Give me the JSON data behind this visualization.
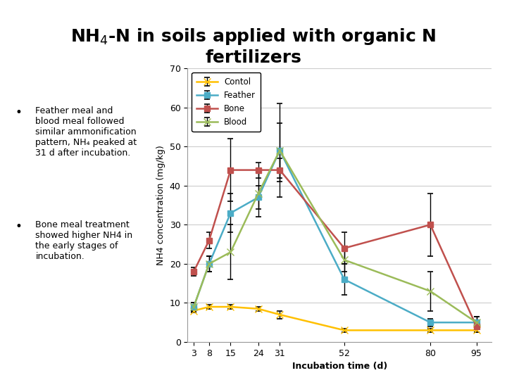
{
  "title": "NH$_4$-N in soils applied with organic N\nfertilizers",
  "xlabel": "Incubation time (d)",
  "ylabel": "NH4 concentration (mg/kg)",
  "x": [
    3,
    8,
    15,
    24,
    31,
    52,
    80,
    95
  ],
  "ylim": [
    0,
    70
  ],
  "yticks": [
    0,
    10,
    20,
    30,
    40,
    50,
    60,
    70
  ],
  "bullet1": "Feather meal and\nblood meal followed\nsimilar ammonification\npattern, NH₄ peaked at\n31 d after incubation.",
  "bullet2": "Bone meal treatment\nshowed higher NH4 in\nthe early stages of\nincubation.",
  "series": {
    "Contol": {
      "y": [
        8,
        9,
        9,
        8.5,
        7,
        3,
        3,
        3
      ],
      "yerr": [
        0.5,
        0.5,
        0.5,
        0.5,
        1.0,
        0.5,
        0.5,
        0.5
      ],
      "color": "#FFC000",
      "marker": "x",
      "linewidth": 1.8,
      "markersize": 7
    },
    "Feather": {
      "y": [
        9,
        20,
        33,
        37,
        49,
        16,
        5,
        5
      ],
      "yerr": [
        1.0,
        2.0,
        5.0,
        3.0,
        12.0,
        4.0,
        1.0,
        1.5
      ],
      "color": "#4BACC6",
      "marker": "s",
      "linewidth": 1.8,
      "markersize": 6
    },
    "Bone": {
      "y": [
        18,
        26,
        44,
        44,
        44,
        24,
        30,
        4
      ],
      "yerr": [
        1.0,
        2.0,
        8.0,
        2.0,
        3.0,
        4.0,
        8.0,
        1.5
      ],
      "color": "#C0504D",
      "marker": "s",
      "linewidth": 1.8,
      "markersize": 6
    },
    "Blood": {
      "y": [
        9,
        20,
        23,
        38,
        49,
        21,
        13,
        5
      ],
      "yerr": [
        1.0,
        2.0,
        7.0,
        6.0,
        7.0,
        3.0,
        5.0,
        1.5
      ],
      "color": "#9BBB59",
      "marker": "x",
      "linewidth": 1.8,
      "markersize": 7
    }
  },
  "background_color": "#FFFFFF",
  "grid_color": "#CCCCCC",
  "title_fontsize": 18,
  "axis_label_fontsize": 9,
  "tick_fontsize": 9,
  "legend_fontsize": 8.5,
  "bullet_fontsize": 9
}
